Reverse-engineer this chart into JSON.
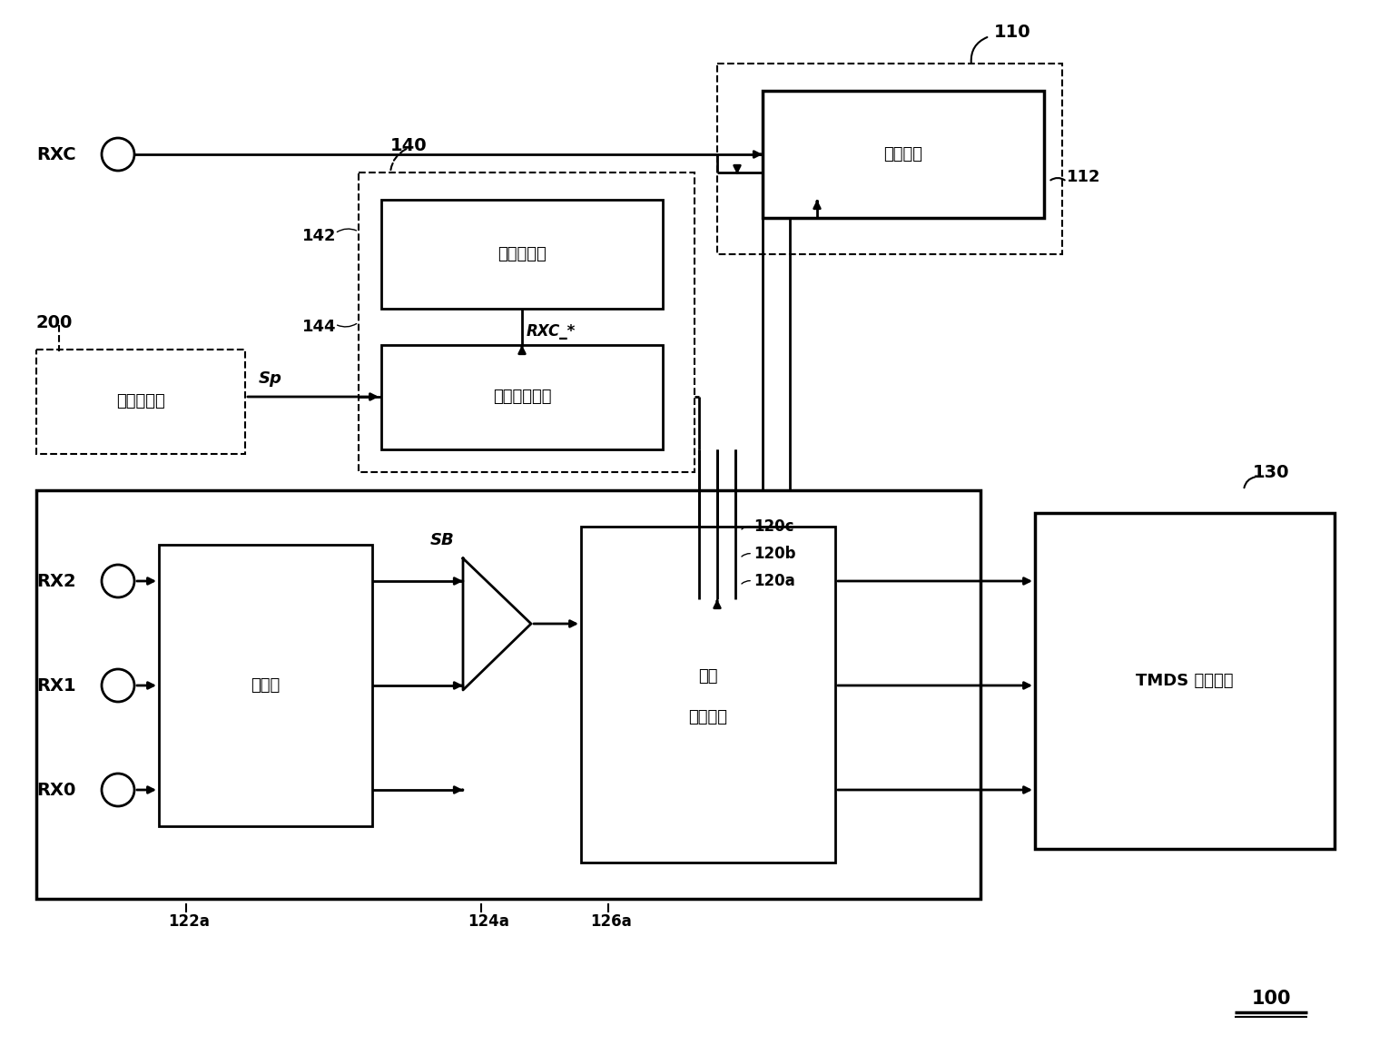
{
  "bg_color": "#ffffff",
  "line_color": "#000000",
  "labels": {
    "RXC": "RXC",
    "RX2": "RX2",
    "RX1": "RX1",
    "RX0": "RX0",
    "box_pll": "锁相回路",
    "box_freq": "频率合成器",
    "box_logic": "逻辑运算单元",
    "box_eq": "均衡器",
    "box_data1": "数据",
    "box_data2": "恢复单元",
    "box_tmds": "TMDS 解码单元",
    "sig_gen": "信号产生器",
    "rxc_star": "RXC_*",
    "sp": "Sp",
    "sb": "SB"
  },
  "refs": {
    "n100": "100",
    "n110": "110",
    "n112": "112",
    "n120a": "120a",
    "n120b": "120b",
    "n120c": "120c",
    "n122a": "122a",
    "n124a": "124a",
    "n126a": "126a",
    "n130": "130",
    "n140": "140",
    "n142": "142",
    "n144": "144",
    "n200": "200"
  }
}
